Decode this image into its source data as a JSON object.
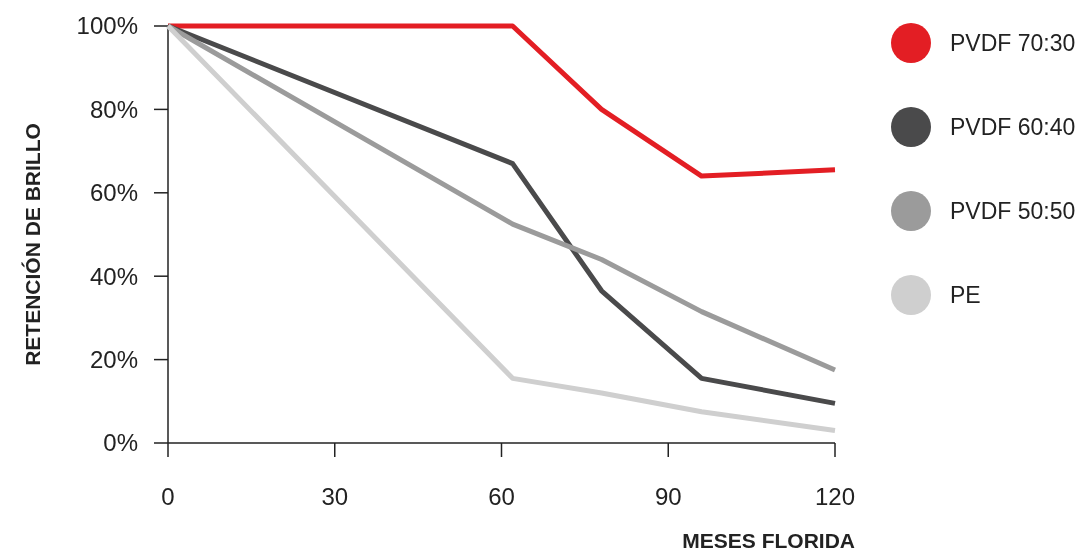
{
  "chart_data": {
    "type": "line",
    "xlabel": "MESES FLORIDA",
    "ylabel": "RETENCIÓN DE BRILLO",
    "xlim": [
      0,
      120
    ],
    "xticks": [
      0,
      30,
      60,
      90,
      120
    ],
    "ylim": [
      0,
      100
    ],
    "yticks": [
      {
        "value": 0,
        "label": "0%"
      },
      {
        "value": 20,
        "label": "20%"
      },
      {
        "value": 40,
        "label": "40%"
      },
      {
        "value": 60,
        "label": "60%"
      },
      {
        "value": 80,
        "label": "80%"
      },
      {
        "value": 100,
        "label": "100%"
      }
    ],
    "grid": false,
    "legend": "right",
    "marker": "none",
    "line_style": "solid",
    "series": [
      {
        "name": "PVDF 70:30",
        "color": "#e31e24",
        "x": [
          0,
          62,
          78,
          96,
          120
        ],
        "values": [
          100,
          100,
          80,
          64,
          65.5
        ]
      },
      {
        "name": "PVDF 60:40",
        "color": "#4a4a4b",
        "x": [
          0,
          62,
          78,
          96,
          120
        ],
        "values": [
          100,
          67,
          36.5,
          15.5,
          9.5
        ]
      },
      {
        "name": "PVDF 50:50",
        "color": "#9b9b9b",
        "x": [
          0,
          62,
          78,
          96,
          120
        ],
        "values": [
          100,
          52.5,
          44,
          31.5,
          17.5
        ]
      },
      {
        "name": "PE",
        "color": "#cfcfcf",
        "x": [
          0,
          62,
          78,
          96,
          120
        ],
        "values": [
          100,
          15.5,
          12,
          7.5,
          3
        ]
      }
    ]
  }
}
